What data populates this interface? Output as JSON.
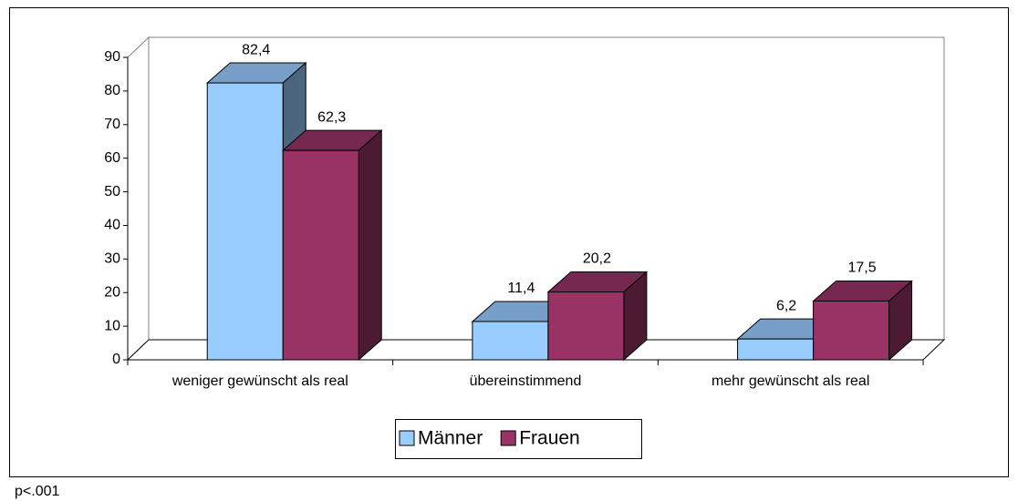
{
  "chart_data": {
    "type": "bar3d",
    "categories": [
      "weniger gewünscht als real",
      "übereinstimmend",
      "mehr gewünscht als real"
    ],
    "series": [
      {
        "name": "Männer",
        "color": "#99ccff",
        "values": [
          82.4,
          11.4,
          6.2
        ],
        "value_labels": [
          "82,4",
          "11,4",
          "6,2"
        ]
      },
      {
        "name": "Frauen",
        "color": "#993366",
        "values": [
          62.3,
          20.2,
          17.5
        ],
        "value_labels": [
          "62,3",
          "20,2",
          "17,5"
        ]
      }
    ],
    "ylim": [
      0,
      90
    ],
    "yticks": [
      0,
      10,
      20,
      30,
      40,
      50,
      60,
      70,
      80,
      90
    ],
    "legend": "bottom",
    "note": "p<.001"
  }
}
